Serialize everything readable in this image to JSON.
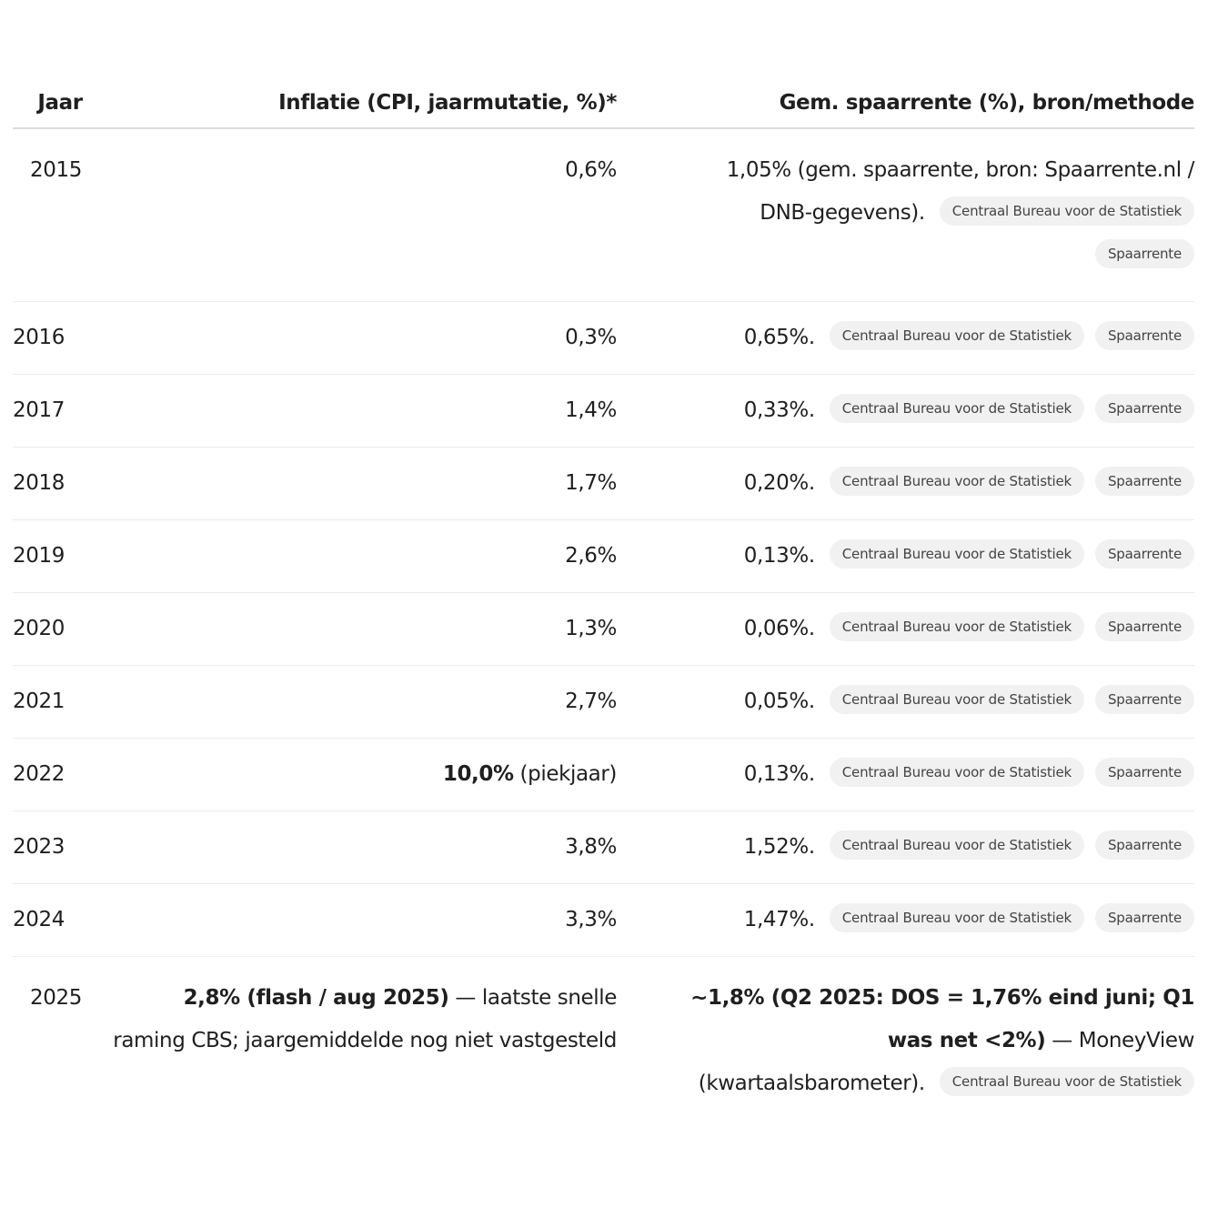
{
  "table": {
    "headers": [
      "Jaar",
      "Inflatie (CPI, jaarmutatie, %)*",
      "Gem. spaarrente (%), bron/methode"
    ],
    "rows": [
      {
        "year": "2015",
        "inflation_bold": "",
        "inflation": "0,6%",
        "rate_bold": "",
        "rate": "1,05% (gem. spaarrente, bron: Spaarrente.nl / DNB-gegevens).",
        "sources": [
          "Centraal Bureau voor de Statistiek",
          "Spaarrente"
        ]
      },
      {
        "year": "2016",
        "inflation_bold": "",
        "inflation": "0,3%",
        "rate_bold": "",
        "rate": "0,65%.",
        "sources": [
          "Centraal Bureau voor de Statistiek",
          "Spaarrente"
        ]
      },
      {
        "year": "2017",
        "inflation_bold": "",
        "inflation": "1,4%",
        "rate_bold": "",
        "rate": "0,33%.",
        "sources": [
          "Centraal Bureau voor de Statistiek",
          "Spaarrente"
        ]
      },
      {
        "year": "2018",
        "inflation_bold": "",
        "inflation": "1,7%",
        "rate_bold": "",
        "rate": "0,20%.",
        "sources": [
          "Centraal Bureau voor de Statistiek",
          "Spaarrente"
        ]
      },
      {
        "year": "2019",
        "inflation_bold": "",
        "inflation": "2,6%",
        "rate_bold": "",
        "rate": "0,13%.",
        "sources": [
          "Centraal Bureau voor de Statistiek",
          "Spaarrente"
        ]
      },
      {
        "year": "2020",
        "inflation_bold": "",
        "inflation": "1,3%",
        "rate_bold": "",
        "rate": "0,06%.",
        "sources": [
          "Centraal Bureau voor de Statistiek",
          "Spaarrente"
        ]
      },
      {
        "year": "2021",
        "inflation_bold": "",
        "inflation": "2,7%",
        "rate_bold": "",
        "rate": "0,05%.",
        "sources": [
          "Centraal Bureau voor de Statistiek",
          "Spaarrente"
        ]
      },
      {
        "year": "2022",
        "inflation_bold": "10,0%",
        "inflation": " (piekjaar)",
        "rate_bold": "",
        "rate": "0,13%.",
        "sources": [
          "Centraal Bureau voor de Statistiek",
          "Spaarrente"
        ]
      },
      {
        "year": "2023",
        "inflation_bold": "",
        "inflation": "3,8%",
        "rate_bold": "",
        "rate": "1,52%.",
        "sources": [
          "Centraal Bureau voor de Statistiek",
          "Spaarrente"
        ]
      },
      {
        "year": "2024",
        "inflation_bold": "",
        "inflation": "3,3%",
        "rate_bold": "",
        "rate": "1,47%.",
        "sources": [
          "Centraal Bureau voor de Statistiek",
          "Spaarrente"
        ]
      },
      {
        "year": "2025",
        "inflation_bold": "2,8% (flash / aug 2025)",
        "inflation": " — laatste snelle raming CBS; jaargemiddelde nog niet vastgesteld",
        "rate_bold": "~1,8% (Q2 2025: DOS = 1,76% eind juni; Q1 was net <2%)",
        "rate": " — MoneyView (kwartaalsbarometer).",
        "sources": [
          "Centraal Bureau voor de Statistiek"
        ]
      }
    ]
  }
}
